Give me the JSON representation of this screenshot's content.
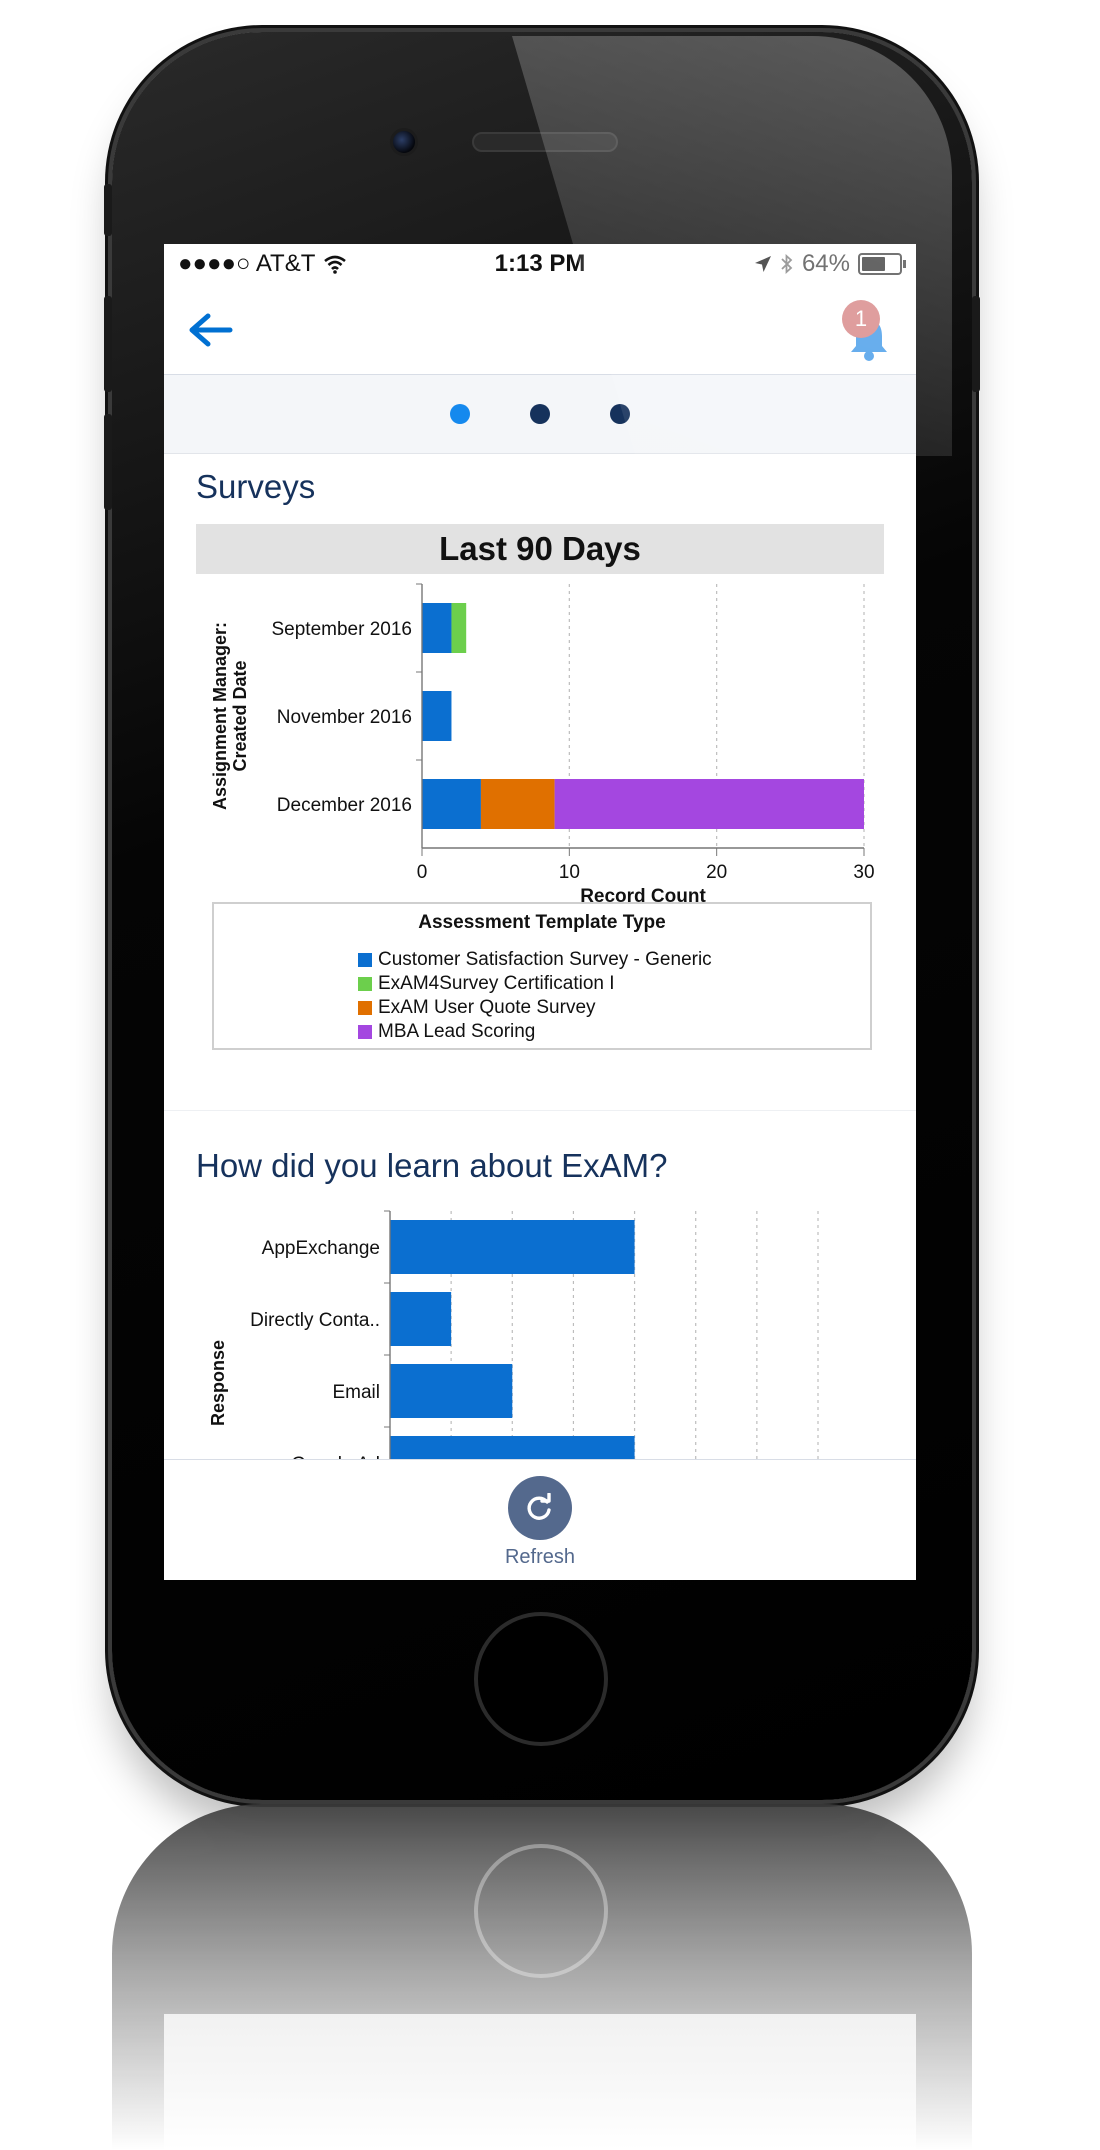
{
  "status_bar": {
    "carrier": "●●●●○ AT&T",
    "time": "1:13 PM",
    "battery": "64%",
    "battery_level": 0.64
  },
  "header": {
    "back_icon": "arrow-left-icon",
    "notification_icon": "bell-icon",
    "notification_count": "1"
  },
  "pagination": {
    "pages": 3,
    "active_index": 0
  },
  "cards": [
    {
      "title": "Surveys",
      "banner": "Last 90 Days"
    },
    {
      "title": "How did you learn about ExAM?"
    }
  ],
  "bottom_bar": {
    "refresh_label": "Refresh",
    "refresh_icon": "refresh-icon"
  },
  "colors": {
    "accent": "#0070d2",
    "title": "#16325c",
    "series": [
      "#0b6fd0",
      "#6ccf4c",
      "#e07000",
      "#a447e0"
    ]
  },
  "chart_data": [
    {
      "type": "bar",
      "orientation": "horizontal",
      "stacked": true,
      "categories": [
        "September 2016",
        "November 2016",
        "December 2016"
      ],
      "series": [
        {
          "name": "Customer Satisfaction Survey - Generic",
          "values": [
            2,
            2,
            4
          ]
        },
        {
          "name": "ExAM4Survey Certification I",
          "values": [
            1,
            0,
            0
          ]
        },
        {
          "name": "ExAM User Quote Survey",
          "values": [
            0,
            0,
            5
          ]
        },
        {
          "name": "MBA Lead Scoring",
          "values": [
            0,
            0,
            21
          ]
        }
      ],
      "xlabel": "Record Count",
      "ylabel_lines": [
        "Assignment Manager:",
        "Created Date"
      ],
      "xticks": [
        0,
        10,
        20,
        30
      ],
      "xlim": [
        0,
        30
      ],
      "legend_title": "Assessment Template Type",
      "legend_position": "bottom",
      "grid": true
    },
    {
      "type": "bar",
      "orientation": "horizontal",
      "categories": [
        "AppExchange",
        "Directly Conta..",
        "Email",
        "Google Ad"
      ],
      "values": [
        4,
        1,
        2,
        4
      ],
      "ylabel": "Response",
      "xlim": [
        0,
        7
      ],
      "grid": true,
      "color": "#0b6fd0"
    }
  ]
}
